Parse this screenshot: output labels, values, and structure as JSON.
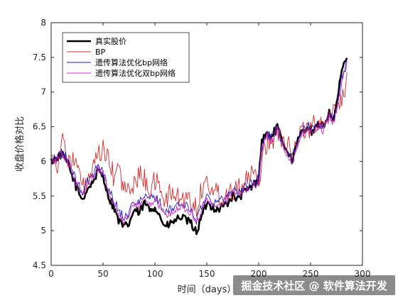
{
  "chart_data": {
    "type": "line",
    "title": "",
    "xlabel": "时间（days）",
    "ylabel": "收盘价格对比",
    "xlim": [
      0,
      300
    ],
    "ylim": [
      4.5,
      8
    ],
    "xticks": [
      0,
      50,
      100,
      150,
      200,
      250,
      300
    ],
    "yticks": [
      4.5,
      5,
      5.5,
      6,
      6.5,
      7,
      7.5,
      8
    ],
    "grid": false,
    "legend_position": "top-left",
    "series": [
      {
        "name": "真实股价",
        "color": "#000000",
        "line_width": "thick",
        "anchors": [
          [
            0,
            6.0
          ],
          [
            5,
            6.05
          ],
          [
            10,
            6.1
          ],
          [
            15,
            6.0
          ],
          [
            20,
            5.8
          ],
          [
            25,
            5.6
          ],
          [
            30,
            5.45
          ],
          [
            35,
            5.6
          ],
          [
            40,
            5.7
          ],
          [
            45,
            5.85
          ],
          [
            50,
            5.8
          ],
          [
            55,
            5.5
          ],
          [
            60,
            5.35
          ],
          [
            65,
            5.15
          ],
          [
            70,
            5.05
          ],
          [
            75,
            5.1
          ],
          [
            80,
            5.3
          ],
          [
            85,
            5.25
          ],
          [
            90,
            5.4
          ],
          [
            95,
            5.3
          ],
          [
            100,
            5.35
          ],
          [
            105,
            5.2
          ],
          [
            110,
            5.05
          ],
          [
            115,
            5.1
          ],
          [
            120,
            5.15
          ],
          [
            125,
            5.2
          ],
          [
            130,
            5.15
          ],
          [
            135,
            5.1
          ],
          [
            140,
            4.98
          ],
          [
            145,
            5.2
          ],
          [
            150,
            5.4
          ],
          [
            155,
            5.35
          ],
          [
            160,
            5.3
          ],
          [
            165,
            5.35
          ],
          [
            170,
            5.4
          ],
          [
            175,
            5.5
          ],
          [
            180,
            5.45
          ],
          [
            185,
            5.55
          ],
          [
            190,
            5.6
          ],
          [
            195,
            5.65
          ],
          [
            200,
            5.75
          ],
          [
            203,
            6.3
          ],
          [
            208,
            6.4
          ],
          [
            212,
            6.35
          ],
          [
            218,
            6.5
          ],
          [
            222,
            6.3
          ],
          [
            228,
            6.15
          ],
          [
            232,
            6.0
          ],
          [
            238,
            6.3
          ],
          [
            242,
            6.45
          ],
          [
            248,
            6.5
          ],
          [
            252,
            6.4
          ],
          [
            258,
            6.55
          ],
          [
            262,
            6.5
          ],
          [
            268,
            6.7
          ],
          [
            272,
            6.6
          ],
          [
            276,
            6.9
          ],
          [
            280,
            7.3
          ],
          [
            285,
            7.5
          ]
        ],
        "noise": 0.06
      },
      {
        "name": "BP",
        "color": "#d42a2a",
        "line_width": "thin",
        "anchors": [
          [
            0,
            6.2
          ],
          [
            5,
            5.9
          ],
          [
            10,
            6.3
          ],
          [
            15,
            6.1
          ],
          [
            20,
            6.0
          ],
          [
            25,
            5.95
          ],
          [
            30,
            5.6
          ],
          [
            35,
            5.7
          ],
          [
            40,
            5.85
          ],
          [
            45,
            6.05
          ],
          [
            50,
            6.2
          ],
          [
            55,
            6.0
          ],
          [
            60,
            5.8
          ],
          [
            65,
            5.9
          ],
          [
            70,
            5.6
          ],
          [
            75,
            5.55
          ],
          [
            80,
            5.7
          ],
          [
            85,
            5.8
          ],
          [
            90,
            5.75
          ],
          [
            95,
            5.6
          ],
          [
            100,
            5.7
          ],
          [
            105,
            5.65
          ],
          [
            110,
            5.4
          ],
          [
            115,
            5.55
          ],
          [
            120,
            5.5
          ],
          [
            125,
            5.45
          ],
          [
            130,
            5.5
          ],
          [
            135,
            5.4
          ],
          [
            140,
            5.35
          ],
          [
            145,
            5.6
          ],
          [
            150,
            5.7
          ],
          [
            155,
            5.6
          ],
          [
            160,
            5.55
          ],
          [
            165,
            5.5
          ],
          [
            170,
            5.55
          ],
          [
            175,
            5.6
          ],
          [
            180,
            5.65
          ],
          [
            185,
            5.7
          ],
          [
            190,
            5.75
          ],
          [
            195,
            5.8
          ],
          [
            200,
            5.7
          ],
          [
            205,
            6.2
          ],
          [
            210,
            6.3
          ],
          [
            215,
            6.35
          ],
          [
            220,
            6.4
          ],
          [
            225,
            6.3
          ],
          [
            230,
            6.25
          ],
          [
            235,
            6.2
          ],
          [
            240,
            6.4
          ],
          [
            245,
            6.5
          ],
          [
            250,
            6.45
          ],
          [
            255,
            6.55
          ],
          [
            260,
            6.6
          ],
          [
            265,
            6.55
          ],
          [
            270,
            6.7
          ],
          [
            275,
            6.8
          ],
          [
            280,
            6.9
          ],
          [
            285,
            7.2
          ]
        ],
        "noise": 0.16
      },
      {
        "name": "遗传算法优化bp网络",
        "color": "#1c1cb8",
        "line_width": "thin",
        "anchors": [
          [
            0,
            6.0
          ],
          [
            5,
            6.05
          ],
          [
            10,
            6.15
          ],
          [
            15,
            6.05
          ],
          [
            20,
            5.85
          ],
          [
            25,
            5.7
          ],
          [
            30,
            5.55
          ],
          [
            35,
            5.7
          ],
          [
            40,
            5.8
          ],
          [
            45,
            5.95
          ],
          [
            50,
            5.85
          ],
          [
            55,
            5.6
          ],
          [
            60,
            5.45
          ],
          [
            65,
            5.3
          ],
          [
            70,
            5.2
          ],
          [
            75,
            5.25
          ],
          [
            80,
            5.45
          ],
          [
            85,
            5.4
          ],
          [
            90,
            5.5
          ],
          [
            95,
            5.45
          ],
          [
            100,
            5.5
          ],
          [
            105,
            5.4
          ],
          [
            110,
            5.25
          ],
          [
            115,
            5.3
          ],
          [
            120,
            5.35
          ],
          [
            125,
            5.4
          ],
          [
            130,
            5.35
          ],
          [
            135,
            5.3
          ],
          [
            140,
            5.15
          ],
          [
            145,
            5.35
          ],
          [
            150,
            5.5
          ],
          [
            155,
            5.45
          ],
          [
            160,
            5.4
          ],
          [
            165,
            5.45
          ],
          [
            170,
            5.5
          ],
          [
            175,
            5.6
          ],
          [
            180,
            5.55
          ],
          [
            185,
            5.6
          ],
          [
            190,
            5.65
          ],
          [
            195,
            5.7
          ],
          [
            200,
            5.75
          ],
          [
            203,
            6.2
          ],
          [
            208,
            6.4
          ],
          [
            212,
            6.35
          ],
          [
            218,
            6.5
          ],
          [
            222,
            6.3
          ],
          [
            228,
            6.15
          ],
          [
            232,
            6.05
          ],
          [
            238,
            6.3
          ],
          [
            242,
            6.45
          ],
          [
            248,
            6.5
          ],
          [
            252,
            6.45
          ],
          [
            258,
            6.55
          ],
          [
            262,
            6.5
          ],
          [
            268,
            6.7
          ],
          [
            272,
            6.6
          ],
          [
            276,
            6.85
          ],
          [
            280,
            7.2
          ],
          [
            285,
            7.45
          ]
        ],
        "noise": 0.07
      },
      {
        "name": "遗传算法优化双bp网络",
        "color": "#cc22cc",
        "line_width": "thin",
        "anchors": [
          [
            0,
            6.0
          ],
          [
            5,
            6.02
          ],
          [
            10,
            6.1
          ],
          [
            15,
            6.02
          ],
          [
            20,
            5.85
          ],
          [
            25,
            5.65
          ],
          [
            30,
            5.5
          ],
          [
            35,
            5.65
          ],
          [
            40,
            5.75
          ],
          [
            45,
            5.9
          ],
          [
            50,
            5.85
          ],
          [
            55,
            5.55
          ],
          [
            60,
            5.4
          ],
          [
            65,
            5.25
          ],
          [
            70,
            5.15
          ],
          [
            75,
            5.2
          ],
          [
            80,
            5.4
          ],
          [
            85,
            5.35
          ],
          [
            90,
            5.45
          ],
          [
            95,
            5.4
          ],
          [
            100,
            5.45
          ],
          [
            105,
            5.35
          ],
          [
            110,
            5.2
          ],
          [
            115,
            5.25
          ],
          [
            120,
            5.3
          ],
          [
            125,
            5.35
          ],
          [
            130,
            5.3
          ],
          [
            135,
            5.25
          ],
          [
            140,
            5.1
          ],
          [
            145,
            5.3
          ],
          [
            150,
            5.45
          ],
          [
            155,
            5.4
          ],
          [
            160,
            5.35
          ],
          [
            165,
            5.4
          ],
          [
            170,
            5.45
          ],
          [
            175,
            5.55
          ],
          [
            180,
            5.5
          ],
          [
            185,
            5.55
          ],
          [
            190,
            5.6
          ],
          [
            195,
            5.65
          ],
          [
            200,
            5.7
          ],
          [
            203,
            6.2
          ],
          [
            208,
            6.35
          ],
          [
            212,
            6.3
          ],
          [
            218,
            6.45
          ],
          [
            222,
            6.25
          ],
          [
            228,
            6.1
          ],
          [
            232,
            6.0
          ],
          [
            238,
            6.25
          ],
          [
            242,
            6.4
          ],
          [
            248,
            6.45
          ],
          [
            252,
            6.4
          ],
          [
            258,
            6.5
          ],
          [
            262,
            6.45
          ],
          [
            268,
            6.65
          ],
          [
            272,
            6.55
          ],
          [
            276,
            6.8
          ],
          [
            280,
            7.15
          ],
          [
            285,
            7.4
          ]
        ],
        "noise": 0.06
      }
    ]
  },
  "watermark": {
    "text": "掘金技术社区 @ 软件算法开发"
  }
}
